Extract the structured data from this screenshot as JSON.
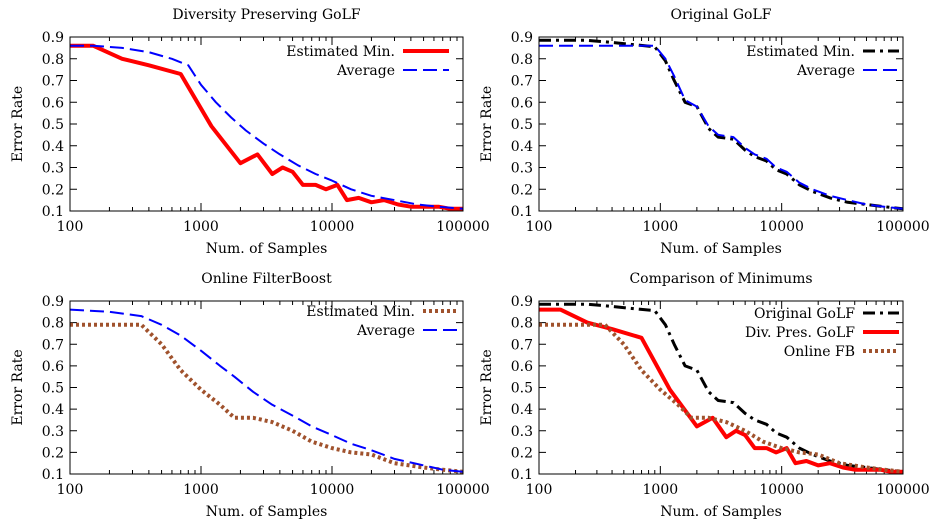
{
  "chart_data": [
    {
      "type": "line",
      "title": "Diversity Preserving GoLF",
      "xlabel": "Num. of Samples",
      "ylabel": "Error Rate",
      "xscale": "log",
      "xlim": [
        100,
        100000
      ],
      "ylim": [
        0.1,
        0.9
      ],
      "xticks": [
        "100",
        "1000",
        "10000",
        "100000"
      ],
      "yticks": [
        "0.1",
        "0.2",
        "0.3",
        "0.4",
        "0.5",
        "0.6",
        "0.7",
        "0.8",
        "0.9"
      ],
      "legend": "top-right",
      "grid": false,
      "series": [
        {
          "name": "Estimated Min.",
          "color": "#ff0000",
          "style": "solid",
          "width": 4,
          "x": [
            100,
            150,
            250,
            400,
            700,
            1200,
            2000,
            2700,
            3500,
            4200,
            5000,
            6000,
            7500,
            9000,
            11000,
            13000,
            16000,
            20000,
            25000,
            32000,
            40000,
            50000,
            65000,
            80000,
            100000
          ],
          "y": [
            0.86,
            0.86,
            0.8,
            0.77,
            0.73,
            0.49,
            0.32,
            0.36,
            0.27,
            0.3,
            0.28,
            0.22,
            0.22,
            0.2,
            0.22,
            0.15,
            0.16,
            0.14,
            0.15,
            0.13,
            0.12,
            0.12,
            0.12,
            0.11,
            0.11
          ]
        },
        {
          "name": "Average",
          "color": "#0000ff",
          "style": "dashed",
          "width": 2,
          "x": [
            100,
            150,
            250,
            400,
            600,
            800,
            1000,
            1300,
            1700,
            2200,
            3000,
            4000,
            5500,
            7500,
            10000,
            14000,
            20000,
            30000,
            45000,
            65000,
            100000
          ],
          "y": [
            0.86,
            0.86,
            0.85,
            0.83,
            0.8,
            0.77,
            0.68,
            0.6,
            0.53,
            0.47,
            0.41,
            0.36,
            0.31,
            0.27,
            0.24,
            0.2,
            0.17,
            0.15,
            0.13,
            0.12,
            0.11
          ]
        }
      ]
    },
    {
      "type": "line",
      "title": "Original GoLF",
      "xlabel": "Num. of Samples",
      "ylabel": "Error Rate",
      "xscale": "log",
      "xlim": [
        100,
        100000
      ],
      "ylim": [
        0.1,
        0.9
      ],
      "xticks": [
        "100",
        "1000",
        "10000",
        "100000"
      ],
      "yticks": [
        "0.1",
        "0.2",
        "0.3",
        "0.4",
        "0.5",
        "0.6",
        "0.7",
        "0.8",
        "0.9"
      ],
      "legend": "top-right",
      "grid": false,
      "series": [
        {
          "name": "Estimated Min.",
          "color": "#000000",
          "style": "dashdot",
          "width": 3,
          "x": [
            100,
            150,
            250,
            400,
            600,
            900,
            1100,
            1300,
            1600,
            2000,
            2500,
            3000,
            4000,
            5000,
            6000,
            7500,
            9000,
            11000,
            14000,
            18000,
            25000,
            35000,
            50000,
            70000,
            100000
          ],
          "y": [
            0.885,
            0.885,
            0.885,
            0.875,
            0.865,
            0.855,
            0.79,
            0.7,
            0.6,
            0.58,
            0.48,
            0.44,
            0.43,
            0.38,
            0.35,
            0.33,
            0.29,
            0.27,
            0.22,
            0.19,
            0.16,
            0.14,
            0.13,
            0.12,
            0.11
          ]
        },
        {
          "name": "Average",
          "color": "#0000ff",
          "style": "dashed",
          "width": 2,
          "x": [
            100,
            150,
            250,
            400,
            600,
            900,
            1100,
            1300,
            1600,
            2000,
            2500,
            3000,
            4000,
            5000,
            6000,
            7500,
            9000,
            11000,
            14000,
            18000,
            25000,
            35000,
            50000,
            70000,
            100000
          ],
          "y": [
            0.86,
            0.86,
            0.86,
            0.86,
            0.86,
            0.86,
            0.8,
            0.72,
            0.61,
            0.58,
            0.49,
            0.45,
            0.44,
            0.39,
            0.36,
            0.34,
            0.3,
            0.28,
            0.23,
            0.2,
            0.17,
            0.15,
            0.13,
            0.12,
            0.11
          ]
        }
      ]
    },
    {
      "type": "line",
      "title": "Online FilterBoost",
      "xlabel": "Num. of Samples",
      "ylabel": "Error Rate",
      "xscale": "log",
      "xlim": [
        100,
        100000
      ],
      "ylim": [
        0.1,
        0.9
      ],
      "xticks": [
        "100",
        "1000",
        "10000",
        "100000"
      ],
      "yticks": [
        "0.1",
        "0.2",
        "0.3",
        "0.4",
        "0.5",
        "0.6",
        "0.7",
        "0.8",
        "0.9"
      ],
      "legend": "top-right",
      "grid": false,
      "series": [
        {
          "name": "Estimated Min.",
          "color": "#a0522d",
          "style": "dotted",
          "width": 4,
          "x": [
            100,
            200,
            350,
            500,
            700,
            1000,
            1400,
            1800,
            2500,
            3500,
            5000,
            7000,
            10000,
            14000,
            20000,
            30000,
            50000,
            70000,
            100000
          ],
          "y": [
            0.79,
            0.79,
            0.79,
            0.7,
            0.58,
            0.49,
            0.42,
            0.36,
            0.36,
            0.34,
            0.3,
            0.25,
            0.22,
            0.2,
            0.19,
            0.15,
            0.13,
            0.12,
            0.11
          ]
        },
        {
          "name": "Average",
          "color": "#0000ff",
          "style": "dashed",
          "width": 2,
          "x": [
            100,
            200,
            350,
            500,
            700,
            1000,
            1400,
            1800,
            2500,
            3500,
            5000,
            7000,
            10000,
            14000,
            20000,
            30000,
            50000,
            70000,
            100000
          ],
          "y": [
            0.86,
            0.85,
            0.83,
            0.79,
            0.74,
            0.67,
            0.6,
            0.55,
            0.48,
            0.42,
            0.37,
            0.32,
            0.28,
            0.24,
            0.21,
            0.17,
            0.14,
            0.12,
            0.11
          ]
        }
      ]
    },
    {
      "type": "line",
      "title": "Comparison of Minimums",
      "xlabel": "Num. of Samples",
      "ylabel": "Error Rate",
      "xscale": "log",
      "xlim": [
        100,
        100000
      ],
      "ylim": [
        0.1,
        0.9
      ],
      "xticks": [
        "100",
        "1000",
        "10000",
        "100000"
      ],
      "yticks": [
        "0.1",
        "0.2",
        "0.3",
        "0.4",
        "0.5",
        "0.6",
        "0.7",
        "0.8",
        "0.9"
      ],
      "legend": "top-right",
      "grid": false,
      "series": [
        {
          "name": "Original GoLF",
          "color": "#000000",
          "style": "dashdot",
          "width": 3,
          "x": [
            100,
            150,
            250,
            400,
            600,
            900,
            1100,
            1300,
            1600,
            2000,
            2500,
            3000,
            4000,
            5000,
            6000,
            7500,
            9000,
            11000,
            14000,
            18000,
            25000,
            35000,
            50000,
            70000,
            100000
          ],
          "y": [
            0.885,
            0.885,
            0.885,
            0.875,
            0.865,
            0.855,
            0.79,
            0.7,
            0.6,
            0.58,
            0.48,
            0.44,
            0.43,
            0.38,
            0.35,
            0.33,
            0.29,
            0.27,
            0.22,
            0.19,
            0.16,
            0.14,
            0.13,
            0.12,
            0.11
          ]
        },
        {
          "name": "Div. Pres. GoLF",
          "color": "#ff0000",
          "style": "solid",
          "width": 4,
          "x": [
            100,
            150,
            250,
            400,
            700,
            1200,
            2000,
            2700,
            3500,
            4200,
            5000,
            6000,
            7500,
            9000,
            11000,
            13000,
            16000,
            20000,
            25000,
            32000,
            40000,
            50000,
            65000,
            80000,
            100000
          ],
          "y": [
            0.86,
            0.86,
            0.8,
            0.77,
            0.73,
            0.49,
            0.32,
            0.36,
            0.27,
            0.3,
            0.28,
            0.22,
            0.22,
            0.2,
            0.22,
            0.15,
            0.16,
            0.14,
            0.15,
            0.13,
            0.12,
            0.12,
            0.12,
            0.11,
            0.11
          ]
        },
        {
          "name": "Online FB",
          "color": "#a0522d",
          "style": "dotted",
          "width": 4,
          "x": [
            100,
            200,
            350,
            500,
            700,
            1000,
            1400,
            1800,
            2500,
            3500,
            5000,
            7000,
            10000,
            14000,
            20000,
            30000,
            50000,
            70000,
            100000
          ],
          "y": [
            0.79,
            0.79,
            0.79,
            0.7,
            0.58,
            0.49,
            0.42,
            0.36,
            0.36,
            0.34,
            0.3,
            0.25,
            0.22,
            0.2,
            0.19,
            0.15,
            0.13,
            0.12,
            0.11
          ]
        }
      ]
    }
  ]
}
